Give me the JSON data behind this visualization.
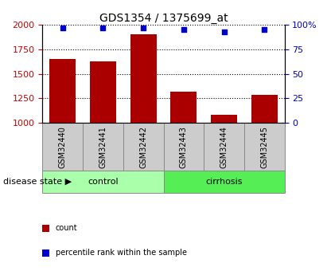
{
  "title": "GDS1354 / 1375699_at",
  "samples": [
    "GSM32440",
    "GSM32441",
    "GSM32442",
    "GSM32443",
    "GSM32444",
    "GSM32445"
  ],
  "counts": [
    1650,
    1625,
    1900,
    1320,
    1080,
    1285
  ],
  "percentile_ranks": [
    97,
    97,
    97,
    95,
    93,
    95
  ],
  "ylim_left": [
    1000,
    2000
  ],
  "ylim_right": [
    0,
    100
  ],
  "yticks_left": [
    1000,
    1250,
    1500,
    1750,
    2000
  ],
  "yticks_right": [
    0,
    25,
    50,
    75,
    100
  ],
  "groups": [
    {
      "label": "control",
      "indices": [
        0,
        1,
        2
      ],
      "color": "#aaffaa"
    },
    {
      "label": "cirrhosis",
      "indices": [
        3,
        4,
        5
      ],
      "color": "#55ee55"
    }
  ],
  "bar_color": "#aa0000",
  "dot_color": "#0000cc",
  "bar_width": 0.65,
  "tick_label_color_left": "#cc0000",
  "tick_label_color_right": "#0000cc",
  "background_color": "#ffffff",
  "xticklabel_bg": "#cccccc",
  "group_label_text": "disease state",
  "legend_items": [
    {
      "label": "count",
      "color": "#aa0000"
    },
    {
      "label": "percentile rank within the sample",
      "color": "#0000cc"
    }
  ],
  "dotted_gridline_color": "#000000",
  "n_samples": 6
}
